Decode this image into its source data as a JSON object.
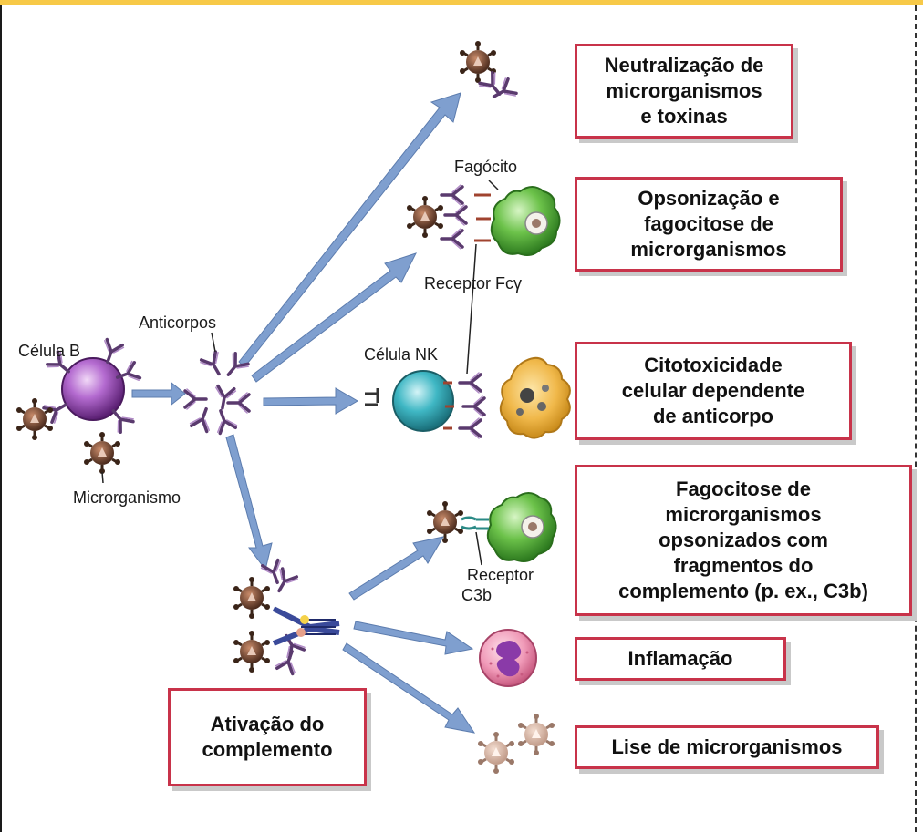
{
  "labels": {
    "b_cell": "Célula B",
    "antibodies": "Anticorpos",
    "microorganism": "Microrganismo",
    "phagocyte": "Fagócito",
    "fc_receptor": "Receptor Fcγ",
    "nk_cell": "Célula NK",
    "c3b_receptor_line1": "Receptor",
    "c3b_receptor_line2": "C3b"
  },
  "outcomes": {
    "neutralization": {
      "line1": "Neutralização de",
      "line2": "microrganismos",
      "line3": "e toxinas"
    },
    "opsonization": {
      "line1": "Opsonização e",
      "line2": "fagocitose de",
      "line3": "microrganismos"
    },
    "adcc": {
      "line1": "Citotoxicidade",
      "line2": "celular dependente",
      "line3": "de anticorpo"
    },
    "complement_phagocytosis": {
      "line1": "Fagocitose de",
      "line2": "microrganismos",
      "line3": "opsonizados com",
      "line4": "fragmentos do",
      "line5": "complemento (p. ex., C3b)"
    },
    "inflammation": {
      "line1": "Inflamação"
    },
    "lysis": {
      "line1": "Lise de microrganismos"
    },
    "complement_activation": {
      "line1": "Ativação do",
      "line2": "complemento"
    }
  },
  "colors": {
    "box_border": "#c8334a",
    "arrow": "#7f9fcf",
    "b_cell": "#8e3fa6",
    "phagocyte": "#4fae3a",
    "nk_cell": "#2aa3b0",
    "antibody": "#6a4a7a",
    "microbe": "#5a3a2a",
    "top_bar": "#f7c948"
  }
}
